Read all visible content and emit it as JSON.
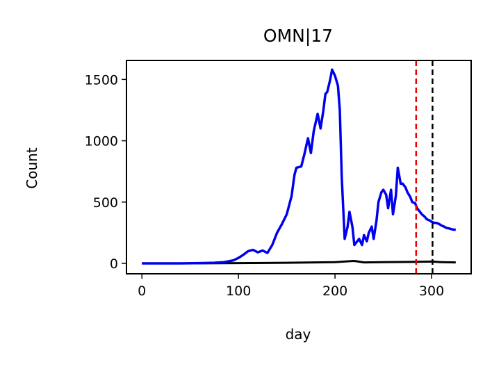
{
  "chart_data": {
    "type": "line",
    "title": "OMN|17",
    "xlabel": "day",
    "ylabel": "Count",
    "xlim": [
      -16,
      341
    ],
    "ylim": [
      -85,
      1655
    ],
    "x_ticks": [
      0,
      100,
      200,
      300
    ],
    "y_ticks": [
      0,
      500,
      1000,
      1500
    ],
    "grid": false,
    "series": [
      {
        "color": "#0000ee",
        "x": [
          0,
          20,
          40,
          60,
          75,
          85,
          95,
          100,
          105,
          110,
          115,
          120,
          125,
          130,
          135,
          140,
          145,
          150,
          155,
          158,
          160,
          165,
          168,
          170,
          172,
          175,
          178,
          180,
          182,
          185,
          188,
          190,
          192,
          195,
          197,
          200,
          203,
          205,
          207,
          210,
          213,
          215,
          218,
          220,
          223,
          225,
          228,
          230,
          233,
          235,
          238,
          240,
          243,
          245,
          248,
          250,
          253,
          255,
          258,
          260,
          263,
          265,
          268,
          270,
          273,
          275,
          278,
          280,
          283,
          285,
          288,
          290,
          293,
          295,
          298,
          300,
          303,
          305,
          308,
          310,
          313,
          315,
          318,
          320,
          323,
          325
        ],
        "y": [
          0,
          0,
          0,
          2,
          5,
          10,
          25,
          45,
          70,
          100,
          110,
          90,
          105,
          85,
          150,
          250,
          320,
          400,
          550,
          720,
          780,
          790,
          880,
          950,
          1020,
          900,
          1080,
          1150,
          1220,
          1100,
          1250,
          1380,
          1400,
          1500,
          1580,
          1530,
          1450,
          1250,
          700,
          200,
          300,
          420,
          300,
          150,
          180,
          200,
          150,
          230,
          180,
          250,
          300,
          200,
          350,
          500,
          580,
          600,
          560,
          450,
          600,
          400,
          550,
          780,
          650,
          650,
          620,
          580,
          540,
          500,
          490,
          450,
          420,
          400,
          380,
          360,
          350,
          340,
          330,
          330,
          320,
          310,
          300,
          290,
          285,
          280,
          275,
          275
        ]
      },
      {
        "color": "#000000",
        "x": [
          0,
          50,
          100,
          150,
          200,
          220,
          230,
          250,
          280,
          300,
          310,
          325
        ],
        "y": [
          0,
          0,
          2,
          5,
          10,
          20,
          8,
          10,
          12,
          15,
          10,
          8
        ]
      }
    ],
    "vlines": [
      {
        "x": 284,
        "color": "#ee0000"
      },
      {
        "x": 301,
        "color": "#000000"
      }
    ]
  }
}
